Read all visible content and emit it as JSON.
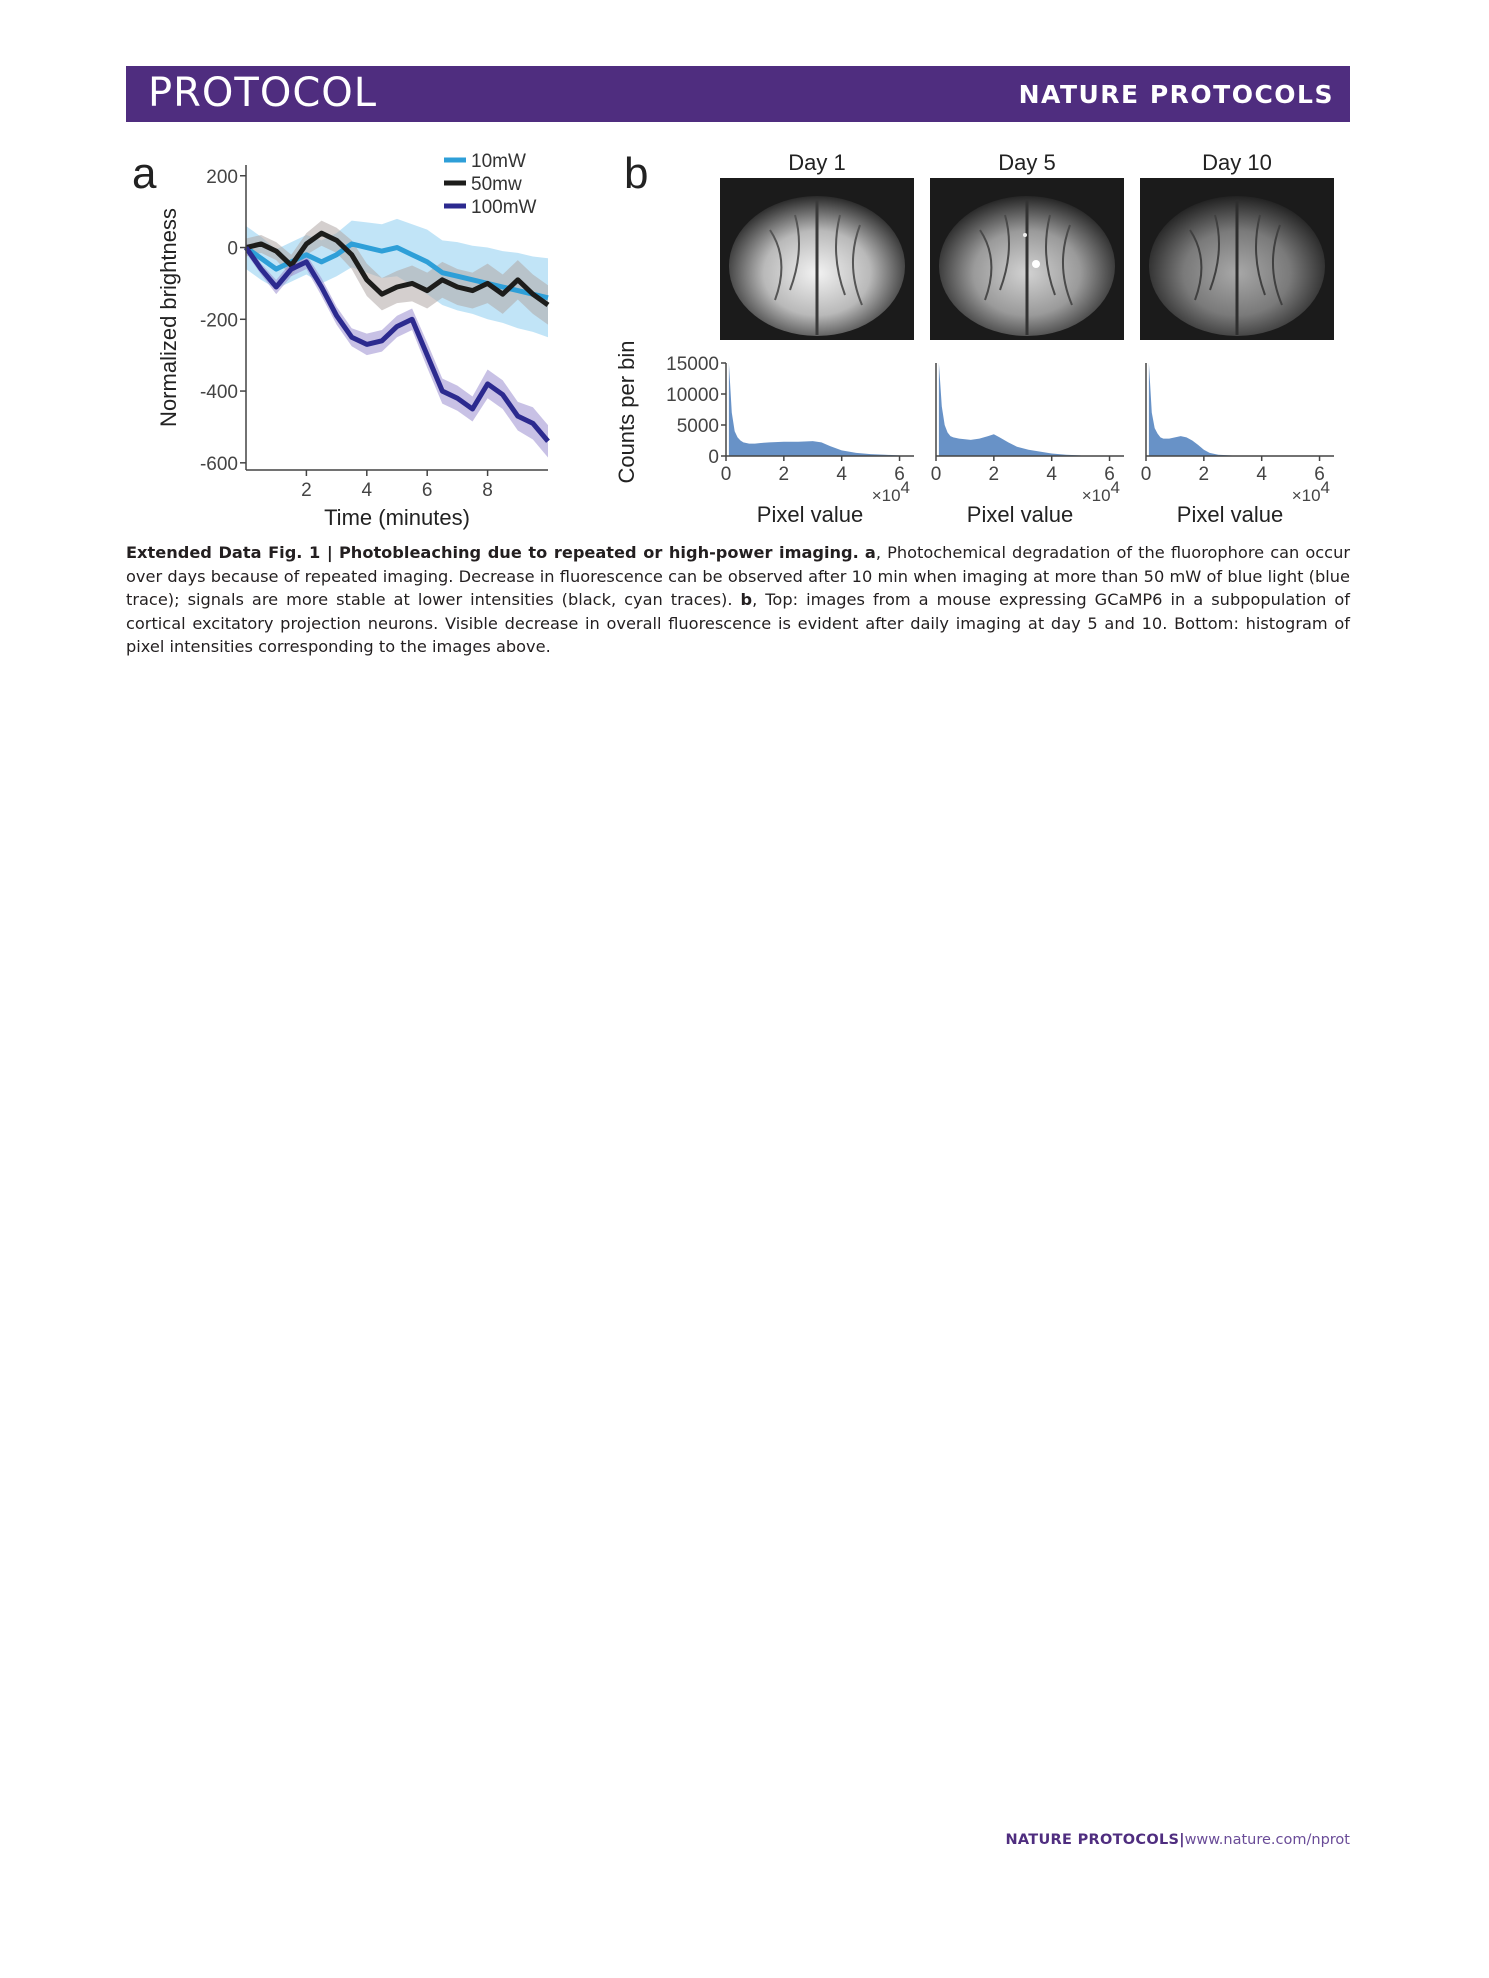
{
  "header": {
    "section": "PROTOCOL",
    "journal": "NATURE PROTOCOLS"
  },
  "figure": {
    "panel_a": {
      "letter": "a",
      "chart_data": {
        "type": "line",
        "xlabel": "Time (minutes)",
        "ylabel": "Normalized brightness",
        "xlim": [
          0,
          10
        ],
        "ylim": [
          -620,
          230
        ],
        "xticks": [
          2,
          4,
          6,
          8
        ],
        "yticks": [
          200,
          0,
          -200,
          -400,
          -600
        ],
        "legend": "top-right",
        "series": [
          {
            "name": "10mW",
            "color": "#2e9fd8",
            "band_color": "#8ecdf0",
            "x": [
              0,
              0.5,
              1,
              1.5,
              2,
              2.5,
              3,
              3.5,
              4,
              4.5,
              5,
              5.5,
              6,
              6.5,
              7,
              7.5,
              8,
              8.5,
              9,
              9.5,
              10
            ],
            "y": [
              0,
              -30,
              -60,
              -40,
              -20,
              -40,
              -20,
              10,
              0,
              -10,
              0,
              -20,
              -40,
              -70,
              -80,
              -90,
              -100,
              -110,
              -120,
              -130,
              -140
            ],
            "band": [
              60,
              60,
              55,
              55,
              55,
              60,
              60,
              65,
              70,
              75,
              80,
              85,
              90,
              90,
              95,
              95,
              100,
              100,
              105,
              105,
              110
            ]
          },
          {
            "name": "50mw",
            "color": "#1d1d1b",
            "band_color": "#b0a8a6",
            "x": [
              0,
              0.5,
              1,
              1.5,
              2,
              2.5,
              3,
              3.5,
              4,
              4.5,
              5,
              5.5,
              6,
              6.5,
              7,
              7.5,
              8,
              8.5,
              9,
              9.5,
              10
            ],
            "y": [
              0,
              10,
              -10,
              -50,
              10,
              40,
              20,
              -20,
              -90,
              -130,
              -110,
              -100,
              -120,
              -90,
              -110,
              -120,
              -100,
              -130,
              -90,
              -130,
              -160
            ],
            "band": [
              25,
              25,
              25,
              30,
              30,
              35,
              35,
              40,
              45,
              45,
              45,
              50,
              50,
              50,
              50,
              50,
              55,
              55,
              55,
              55,
              55
            ]
          },
          {
            "name": "100mW",
            "color": "#2c2a8f",
            "band_color": "#9b8ecf",
            "x": [
              0,
              0.5,
              1,
              1.5,
              2,
              2.5,
              3,
              3.5,
              4,
              4.5,
              5,
              5.5,
              6,
              6.5,
              7,
              7.5,
              8,
              8.5,
              9,
              9.5,
              10
            ],
            "y": [
              0,
              -60,
              -110,
              -60,
              -40,
              -110,
              -190,
              -250,
              -270,
              -260,
              -220,
              -200,
              -300,
              -400,
              -420,
              -450,
              -380,
              -410,
              -470,
              -490,
              -540
            ],
            "band": [
              15,
              15,
              20,
              20,
              20,
              25,
              25,
              25,
              30,
              30,
              30,
              30,
              35,
              35,
              35,
              35,
              40,
              40,
              40,
              45,
              45
            ]
          }
        ]
      }
    },
    "panel_b": {
      "letter": "b",
      "days": [
        "Day 1",
        "Day 5",
        "Day 10"
      ],
      "chart_data": [
        {
          "type": "bar",
          "title": "Day 1",
          "xlabel": "Pixel value",
          "ylabel": "Counts per bin",
          "x_multiplier": "×10",
          "x_multiplier_exp": "4",
          "xlim": [
            0,
            6.5
          ],
          "ylim": [
            0,
            15000
          ],
          "xticks": [
            0,
            2,
            4,
            6
          ],
          "yticks": [
            15000,
            10000,
            5000,
            0
          ],
          "bin_centers": [
            0.1,
            0.2,
            0.3,
            0.4,
            0.5,
            0.6,
            0.8,
            1.0,
            1.2,
            1.5,
            2.0,
            2.5,
            3.0,
            3.3,
            3.6,
            4.0,
            4.5,
            5.0,
            5.5,
            6.0
          ],
          "counts": [
            15000,
            7000,
            4000,
            3000,
            2500,
            2200,
            2000,
            2000,
            2100,
            2200,
            2300,
            2300,
            2400,
            2200,
            1600,
            900,
            500,
            300,
            200,
            100
          ]
        },
        {
          "type": "bar",
          "title": "Day 5",
          "xlabel": "Pixel value",
          "ylabel": "Counts per bin",
          "x_multiplier": "×10",
          "x_multiplier_exp": "4",
          "xlim": [
            0,
            6.5
          ],
          "ylim": [
            0,
            15000
          ],
          "xticks": [
            0,
            2,
            4,
            6
          ],
          "yticks": [
            15000,
            10000,
            5000,
            0
          ],
          "bin_centers": [
            0.1,
            0.2,
            0.3,
            0.4,
            0.5,
            0.6,
            0.8,
            1.0,
            1.2,
            1.5,
            1.8,
            2.0,
            2.2,
            2.5,
            2.8,
            3.2,
            3.6,
            4.0,
            4.5,
            5.0
          ],
          "counts": [
            15000,
            8000,
            5000,
            3800,
            3200,
            3000,
            2800,
            2700,
            2600,
            2800,
            3200,
            3500,
            3000,
            2200,
            1500,
            1000,
            700,
            400,
            200,
            100
          ]
        },
        {
          "type": "bar",
          "title": "Day 10",
          "xlabel": "Pixel value",
          "ylabel": "Counts per bin",
          "x_multiplier": "×10",
          "x_multiplier_exp": "4",
          "xlim": [
            0,
            6.5
          ],
          "ylim": [
            0,
            15000
          ],
          "xticks": [
            0,
            2,
            4,
            6
          ],
          "yticks": [
            15000,
            10000,
            5000,
            0
          ],
          "bin_centers": [
            0.1,
            0.2,
            0.3,
            0.4,
            0.5,
            0.6,
            0.8,
            1.0,
            1.2,
            1.4,
            1.6,
            1.8,
            2.0,
            2.2,
            2.5,
            3.0
          ],
          "counts": [
            15000,
            7000,
            4500,
            3600,
            3000,
            2800,
            2800,
            3000,
            3200,
            3000,
            2500,
            1800,
            1000,
            500,
            200,
            80
          ]
        }
      ]
    }
  },
  "caption": {
    "label": "Extended Data Fig. 1 |",
    "title": "Photobleaching due to repeated or high-power imaging.",
    "a_letter": "a",
    "a_text": ", Photochemical degradation of the fluorophore can occur over days because of repeated imaging. Decrease in fluorescence can be observed after 10 min when imaging at more than 50 mW of blue light (blue trace); signals are more stable at lower intensities (black, cyan traces).",
    "b_letter": "b",
    "b_text": ", Top: images from a mouse expressing GCaMP6 in a subpopulation of cortical excitatory projection neurons. Visible decrease in overall fluorescence is evident after daily imaging at day 5 and 10. Bottom: histogram of pixel intensities corresponding to the images above."
  },
  "footer": {
    "journal": "NATURE PROTOCOLS",
    "separator": "|",
    "url": "www.nature.com/nprot"
  }
}
